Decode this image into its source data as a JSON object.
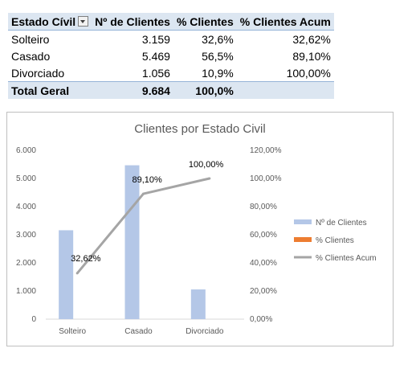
{
  "pivot_table": {
    "headers": [
      "Estado Cívil",
      "Nº de Clientes",
      "% Clientes",
      "% Clientes Acum"
    ],
    "rows": [
      [
        "Solteiro",
        "3.159",
        "32,6%",
        "32,62%"
      ],
      [
        "Casado",
        "5.469",
        "56,5%",
        "89,10%"
      ],
      [
        "Divorciado",
        "1.056",
        "10,9%",
        "100,00%"
      ]
    ],
    "total": [
      "Total Geral",
      "9.684",
      "100,0%",
      ""
    ]
  },
  "chart_data": {
    "type": "bar",
    "title": "Clientes por Estado Civil",
    "categories": [
      "Solteiro",
      "Casado",
      "Divorciado"
    ],
    "series": [
      {
        "name": "Nº de Clientes",
        "type": "bar",
        "axis": "left",
        "values": [
          3159,
          5469,
          1056
        ],
        "color": "#b4c7e7"
      },
      {
        "name": "% Clientes",
        "type": "bar",
        "axis": "right",
        "values": [
          32.6,
          56.5,
          10.9
        ],
        "color": "#ed7d31"
      },
      {
        "name": "% Clientes Acum",
        "type": "line",
        "axis": "right",
        "values": [
          32.62,
          89.1,
          100.0
        ],
        "color": "#a5a5a5",
        "data_labels": [
          "32,62%",
          "89,10%",
          "100,00%"
        ]
      }
    ],
    "y_left": {
      "range": [
        0,
        6000
      ],
      "ticks": [
        "0",
        "1.000",
        "2.000",
        "3.000",
        "4.000",
        "5.000",
        "6.000"
      ]
    },
    "y_right": {
      "range": [
        0,
        120
      ],
      "ticks": [
        "0,00%",
        "20,00%",
        "40,00%",
        "60,00%",
        "80,00%",
        "100,00%",
        "120,00%"
      ]
    },
    "legend": "right",
    "grid": false
  }
}
